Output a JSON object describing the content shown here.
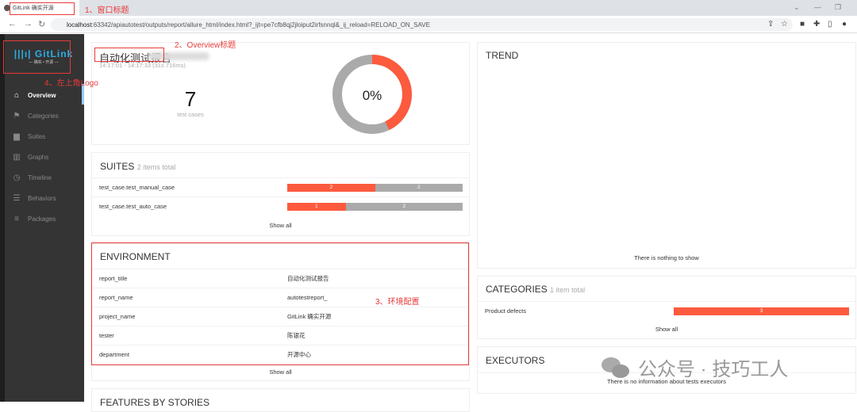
{
  "browser": {
    "tab_title": "GitLink 确实开源",
    "url_host": "localhost",
    "url_rest": ":63342/apiautotest/outputs/report/allure_html/index.html?_ijt=pe7cfb8qj2jloiput2irfsnnql&_ij_reload=RELOAD_ON_SAVE"
  },
  "sidebar": {
    "logo_text": "GitLink",
    "logo_sub": "— 确实 • 开源 —",
    "items": [
      {
        "label": "Overview",
        "icon": "home-icon",
        "active": true
      },
      {
        "label": "Categories",
        "icon": "flag-icon"
      },
      {
        "label": "Suites",
        "icon": "briefcase-icon"
      },
      {
        "label": "Graphs",
        "icon": "bar-chart-icon"
      },
      {
        "label": "Timeline",
        "icon": "clock-icon"
      },
      {
        "label": "Behaviors",
        "icon": "list-icon"
      },
      {
        "label": "Packages",
        "icon": "align-left-icon"
      }
    ]
  },
  "overview": {
    "title": "自动化测试报告",
    "time": "14:17:01 - 14:17:33 (31s 716ms)",
    "count": "7",
    "count_label": "test cases",
    "percent": "0%",
    "donut": {
      "failed": 3,
      "other": 4
    }
  },
  "suites": {
    "title": "SUITES",
    "subtitle": "2 items total",
    "rows": [
      {
        "name": "test_case.test_manual_case",
        "failed": 2,
        "other": 2
      },
      {
        "name": "test_case.test_auto_case",
        "failed": 1,
        "other": 2
      }
    ],
    "show_all": "Show all"
  },
  "environment": {
    "title": "ENVIRONMENT",
    "rows": [
      {
        "key": "report_title",
        "value": "自动化测试报告"
      },
      {
        "key": "report_name",
        "value": "autotestreport_"
      },
      {
        "key": "project_name",
        "value": "GitLink 确实开源"
      },
      {
        "key": "tester",
        "value": "陈银花"
      },
      {
        "key": "department",
        "value": "开源中心"
      }
    ],
    "show_all": "Show all"
  },
  "features": {
    "title": "FEATURES BY STORIES"
  },
  "trend": {
    "title": "TREND",
    "empty": "There is nothing to show"
  },
  "categories": {
    "title": "CATEGORIES",
    "subtitle": "1 item total",
    "rows": [
      {
        "name": "Product defects",
        "count": 3
      }
    ],
    "show_all": "Show all"
  },
  "executors": {
    "title": "EXECUTORS",
    "empty": "There is no information about tests executors"
  },
  "annotations": {
    "a1": "1、窗口标题",
    "a2": "2、Overview标题",
    "a3": "3、环境配置",
    "a4": "4、左上角Logo"
  },
  "watermark": "公众号 · 技巧工人",
  "colors": {
    "failed": "#fd5a3e",
    "other": "#aaaaaa",
    "sidebar": "#343434",
    "annotation": "#e83a3a"
  }
}
